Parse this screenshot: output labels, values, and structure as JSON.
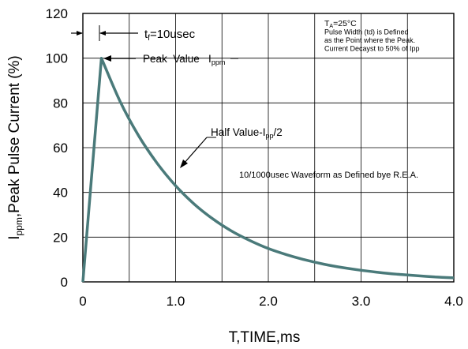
{
  "chart_data": {
    "type": "line",
    "title": "",
    "xlabel": "T,TIME,ms",
    "ylabel": {
      "main": "I",
      "sub": "ppm",
      "rest": ",Peak Pulse Current (%)"
    },
    "xlim": [
      0,
      4.0
    ],
    "ylim": [
      0,
      120
    ],
    "x_ticks": [
      "0",
      "1.0",
      "2.0",
      "3.0",
      "4.0"
    ],
    "y_ticks": [
      "0",
      "20",
      "40",
      "60",
      "80",
      "100",
      "120"
    ],
    "grid": true,
    "series": [
      {
        "color": "#4a7a7a",
        "x": [
          0,
          0.2,
          0.4,
          0.6,
          0.8,
          1.0,
          1.2,
          1.4,
          1.6,
          1.8,
          2.0,
          2.2,
          2.4,
          2.6,
          2.8,
          3.0,
          3.2,
          3.4,
          3.6,
          3.8,
          4.0
        ],
        "y": [
          0,
          100,
          80.8,
          65.4,
          53.1,
          43.0,
          34.8,
          28.2,
          22.8,
          18.5,
          14.9,
          12.1,
          9.8,
          7.9,
          6.4,
          5.2,
          4.2,
          3.4,
          2.8,
          2.2,
          1.8
        ]
      }
    ],
    "annotations": {
      "tf": {
        "main": "t",
        "sub": "f",
        "rest": "=10usec"
      },
      "peak": {
        "main": "Peak  Value   I",
        "sub": "ppm"
      },
      "half": {
        "main": "Half Value-I",
        "sub": "pp",
        "rest": "/2"
      },
      "waveform": "10/1000usec  Waveform as Defined bye R.E.A.",
      "conditions": [
        {
          "main": "T",
          "sub": "A",
          "rest": "=25°C"
        },
        {
          "main": "Pulse   Width (td) is  Defined"
        },
        {
          "main": "as the Point  where the Peak."
        },
        {
          "main": "Current  Decayst to 50% of Ipp"
        }
      ]
    }
  }
}
